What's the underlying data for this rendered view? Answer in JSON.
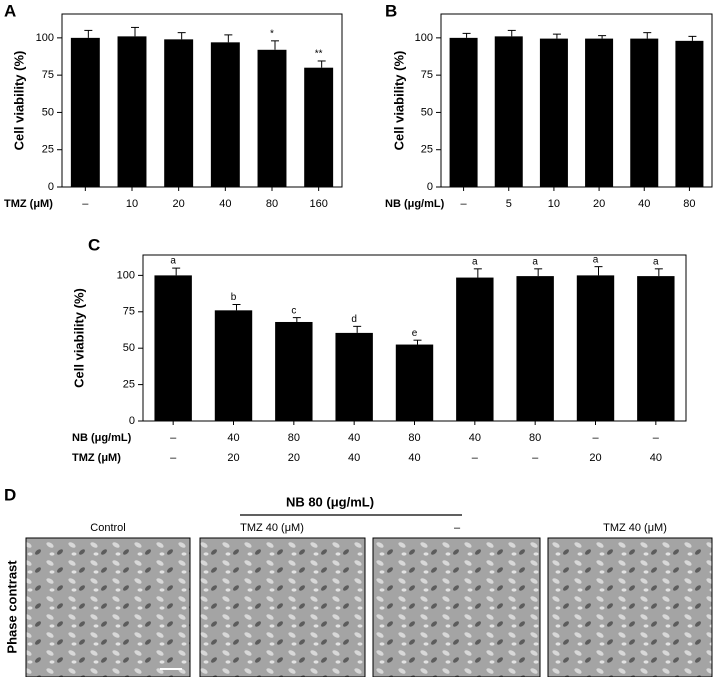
{
  "chart_data": [
    {
      "type": "bar",
      "panel": "A",
      "ylabel": "Cell viability (%)",
      "category_rows": [
        {
          "name": "TMZ (μM)",
          "labels": [
            "–",
            "10",
            "20",
            "40",
            "80",
            "160"
          ]
        }
      ],
      "values": [
        100,
        101,
        99,
        97,
        92,
        80
      ],
      "errors": [
        5,
        6,
        4.5,
        5,
        6,
        4.5
      ],
      "bar_labels": [
        null,
        null,
        null,
        null,
        "*",
        "**"
      ],
      "color": "#000000",
      "ylim": [
        0,
        116
      ],
      "yticks": [
        0,
        25,
        50,
        75,
        100
      ]
    },
    {
      "type": "bar",
      "panel": "B",
      "ylabel": "Cell viability (%)",
      "category_rows": [
        {
          "name": "NB (μg/mL)",
          "labels": [
            "–",
            "5",
            "10",
            "20",
            "40",
            "80"
          ]
        }
      ],
      "values": [
        100,
        101,
        99.5,
        99.5,
        99.5,
        98
      ],
      "errors": [
        3,
        4,
        3,
        2,
        4,
        3
      ],
      "color": "#000000",
      "ylim": [
        0,
        116
      ],
      "yticks": [
        0,
        25,
        50,
        75,
        100
      ]
    },
    {
      "type": "bar",
      "panel": "C",
      "ylabel": "Cell viability (%)",
      "category_rows": [
        {
          "name": "NB (μg/mL)",
          "labels": [
            "–",
            "40",
            "80",
            "40",
            "80",
            "40",
            "80",
            "–",
            "–"
          ]
        },
        {
          "name": "TMZ (μM)",
          "labels": [
            "–",
            "20",
            "20",
            "40",
            "40",
            "–",
            "–",
            "20",
            "40"
          ]
        }
      ],
      "values": [
        100,
        76,
        68,
        60.5,
        52.5,
        98.5,
        99.5,
        100,
        99.5
      ],
      "errors": [
        5,
        4,
        3,
        4.5,
        3,
        6,
        5,
        6,
        5
      ],
      "bar_labels": [
        "a",
        "b",
        "c",
        "d",
        "e",
        "a",
        "a",
        "a",
        "a"
      ],
      "color": "#000000",
      "ylim": [
        0,
        114
      ],
      "yticks": [
        0,
        25,
        50,
        75,
        100
      ]
    }
  ],
  "panel_d": {
    "panel": "D",
    "group_title": "NB 80 (μg/mL)",
    "row_label": "Phase contrast",
    "columns": [
      "Control",
      "TMZ 40 (μM)",
      "–",
      "TMZ 40 (μM)"
    ]
  }
}
